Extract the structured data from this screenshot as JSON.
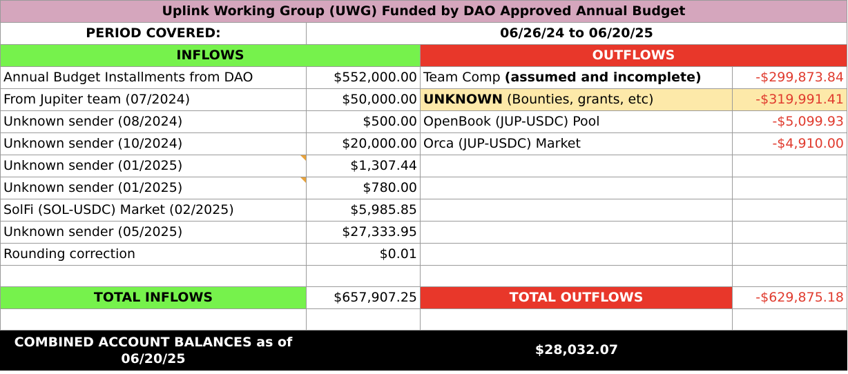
{
  "title": "Uplink Working Group (UWG) Funded by DAO Approved Annual Budget",
  "period": {
    "label": "PERIOD COVERED:",
    "value": "06/26/24 to 06/20/25"
  },
  "headers": {
    "inflows": "INFLOWS",
    "outflows": "OUTFLOWS"
  },
  "rows": [
    {
      "in_label": "Annual Budget Installments from DAO",
      "in_amount": "$552,000.00",
      "out_label": "Team Comp ",
      "out_label_bold": "(assumed and incomplete)",
      "out_amount": "-$299,873.84"
    },
    {
      "in_label": "From Jupiter team (07/2024)",
      "in_amount": "$50,000.00",
      "out_label_bold_prefix": "UNKNOWN",
      "out_label": " (Bounties, grants, etc)",
      "out_amount": "-$319,991.41"
    },
    {
      "in_label": "Unknown sender (08/2024)",
      "in_amount": "$500.00",
      "out_label": "OpenBook (JUP-USDC) Pool",
      "out_amount": "-$5,099.93"
    },
    {
      "in_label": "Unknown sender (10/2024)",
      "in_amount": "$20,000.00",
      "out_label": "Orca (JUP-USDC) Market",
      "out_amount": "-$4,910.00"
    },
    {
      "in_label": "Unknown sender (01/2025)",
      "in_amount": "$1,307.44",
      "out_label": "",
      "out_amount": ""
    },
    {
      "in_label": "Unknown sender (01/2025)",
      "in_amount": "$780.00",
      "out_label": "",
      "out_amount": ""
    },
    {
      "in_label": "SolFi (SOL-USDC) Market (02/2025)",
      "in_amount": "$5,985.85",
      "out_label": "",
      "out_amount": ""
    },
    {
      "in_label": "Unknown sender (05/2025)",
      "in_amount": "$27,333.95",
      "out_label": "",
      "out_amount": ""
    },
    {
      "in_label": "Rounding correction",
      "in_amount": "$0.01",
      "out_label": "",
      "out_amount": ""
    }
  ],
  "totals": {
    "inflows_label": "TOTAL INFLOWS",
    "inflows_value": "$657,907.25",
    "outflows_label": "TOTAL OUTFLOWS",
    "outflows_value": "-$629,875.18"
  },
  "combined": {
    "label": "COMBINED ACCOUNT BALANCES as of 06/20/25",
    "value": "$28,032.07"
  },
  "colors": {
    "title_bg": "#d5a6bd",
    "inflows_bg": "#76f24c",
    "outflows_bg": "#e8372a",
    "negative_text": "#e03b2e",
    "unknown_bg": "#fde9a9",
    "combined_bg": "#000000"
  }
}
